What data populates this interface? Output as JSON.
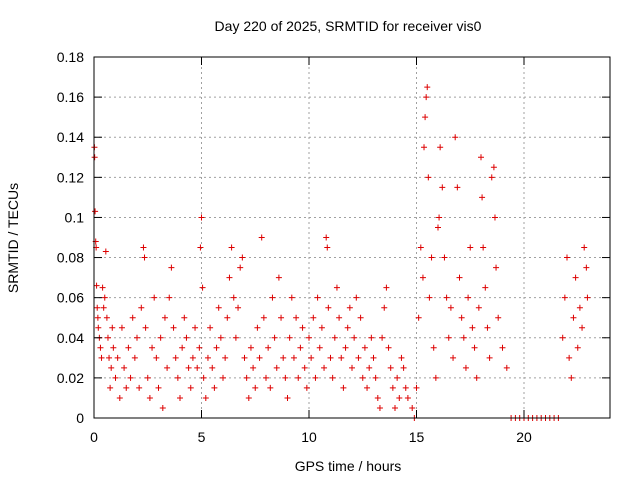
{
  "chart_data": {
    "type": "scatter",
    "title": "Day 220 of 2025, SRMTID for receiver vis0",
    "xlabel": "GPS time / hours",
    "ylabel": "SRMTID / TECUs",
    "xlim": [
      0,
      24
    ],
    "ylim": [
      0,
      0.18
    ],
    "xticks": [
      0,
      5,
      10,
      15,
      20
    ],
    "xtick_labels": [
      "0",
      "5",
      "10",
      "15",
      "20"
    ],
    "yticks": [
      0,
      0.02,
      0.04,
      0.06,
      0.08,
      0.1,
      0.12,
      0.14,
      0.16,
      0.18
    ],
    "ytick_labels": [
      "0",
      "0.02",
      "0.04",
      "0.06",
      "0.08",
      "0.1",
      "0.12",
      "0.14",
      "0.16",
      "0.18"
    ],
    "grid": true,
    "marker": "plus",
    "color": "#dd0000",
    "series": [
      {
        "values": [
          [
            0.02,
            0.135
          ],
          [
            0.03,
            0.13
          ],
          [
            0.05,
            0.103
          ],
          [
            0.08,
            0.088
          ],
          [
            0.1,
            0.085
          ],
          [
            0.12,
            0.066
          ],
          [
            0.15,
            0.055
          ],
          [
            0.18,
            0.05
          ],
          [
            0.2,
            0.045
          ],
          [
            0.25,
            0.04
          ],
          [
            0.3,
            0.035
          ],
          [
            0.35,
            0.03
          ],
          [
            0.4,
            0.065
          ],
          [
            0.45,
            0.055
          ],
          [
            0.5,
            0.06
          ],
          [
            0.55,
            0.083
          ],
          [
            0.6,
            0.05
          ],
          [
            0.65,
            0.04
          ],
          [
            0.7,
            0.03
          ],
          [
            0.75,
            0.015
          ],
          [
            0.8,
            0.025
          ],
          [
            0.85,
            0.045
          ],
          [
            0.9,
            0.035
          ],
          [
            1.0,
            0.02
          ],
          [
            1.1,
            0.03
          ],
          [
            1.2,
            0.01
          ],
          [
            1.3,
            0.045
          ],
          [
            1.4,
            0.025
          ],
          [
            1.5,
            0.015
          ],
          [
            1.6,
            0.035
          ],
          [
            1.7,
            0.02
          ],
          [
            1.8,
            0.05
          ],
          [
            1.9,
            0.03
          ],
          [
            2.0,
            0.04
          ],
          [
            2.1,
            0.015
          ],
          [
            2.2,
            0.055
          ],
          [
            2.3,
            0.085
          ],
          [
            2.35,
            0.08
          ],
          [
            2.4,
            0.045
          ],
          [
            2.5,
            0.02
          ],
          [
            2.6,
            0.01
          ],
          [
            2.7,
            0.035
          ],
          [
            2.8,
            0.06
          ],
          [
            2.9,
            0.03
          ],
          [
            3.0,
            0.015
          ],
          [
            3.1,
            0.04
          ],
          [
            3.2,
            0.005
          ],
          [
            3.3,
            0.05
          ],
          [
            3.4,
            0.025
          ],
          [
            3.5,
            0.06
          ],
          [
            3.6,
            0.075
          ],
          [
            3.7,
            0.045
          ],
          [
            3.8,
            0.03
          ],
          [
            3.9,
            0.02
          ],
          [
            4.0,
            0.01
          ],
          [
            4.1,
            0.035
          ],
          [
            4.2,
            0.05
          ],
          [
            4.3,
            0.04
          ],
          [
            4.4,
            0.025
          ],
          [
            4.5,
            0.015
          ],
          [
            4.6,
            0.03
          ],
          [
            4.7,
            0.045
          ],
          [
            4.8,
            0.025
          ],
          [
            4.9,
            0.035
          ],
          [
            4.95,
            0.085
          ],
          [
            5.0,
            0.1
          ],
          [
            5.05,
            0.065
          ],
          [
            5.1,
            0.02
          ],
          [
            5.2,
            0.01
          ],
          [
            5.3,
            0.03
          ],
          [
            5.4,
            0.045
          ],
          [
            5.5,
            0.025
          ],
          [
            5.6,
            0.015
          ],
          [
            5.7,
            0.035
          ],
          [
            5.8,
            0.055
          ],
          [
            5.9,
            0.04
          ],
          [
            6.0,
            0.02
          ],
          [
            6.1,
            0.03
          ],
          [
            6.2,
            0.05
          ],
          [
            6.3,
            0.07
          ],
          [
            6.4,
            0.085
          ],
          [
            6.5,
            0.06
          ],
          [
            6.6,
            0.04
          ],
          [
            6.7,
            0.055
          ],
          [
            6.8,
            0.075
          ],
          [
            6.9,
            0.08
          ],
          [
            7.0,
            0.03
          ],
          [
            7.1,
            0.02
          ],
          [
            7.2,
            0.01
          ],
          [
            7.3,
            0.035
          ],
          [
            7.4,
            0.025
          ],
          [
            7.5,
            0.015
          ],
          [
            7.6,
            0.045
          ],
          [
            7.7,
            0.03
          ],
          [
            7.8,
            0.09
          ],
          [
            7.9,
            0.05
          ],
          [
            8.0,
            0.02
          ],
          [
            8.1,
            0.035
          ],
          [
            8.2,
            0.015
          ],
          [
            8.3,
            0.06
          ],
          [
            8.4,
            0.04
          ],
          [
            8.5,
            0.025
          ],
          [
            8.6,
            0.07
          ],
          [
            8.7,
            0.05
          ],
          [
            8.8,
            0.03
          ],
          [
            8.9,
            0.02
          ],
          [
            9.0,
            0.01
          ],
          [
            9.1,
            0.04
          ],
          [
            9.2,
            0.06
          ],
          [
            9.3,
            0.03
          ],
          [
            9.4,
            0.05
          ],
          [
            9.5,
            0.02
          ],
          [
            9.6,
            0.035
          ],
          [
            9.7,
            0.045
          ],
          [
            9.8,
            0.025
          ],
          [
            9.9,
            0.015
          ],
          [
            10.0,
            0.04
          ],
          [
            10.1,
            0.03
          ],
          [
            10.2,
            0.05
          ],
          [
            10.3,
            0.02
          ],
          [
            10.4,
            0.06
          ],
          [
            10.5,
            0.035
          ],
          [
            10.6,
            0.045
          ],
          [
            10.7,
            0.025
          ],
          [
            10.8,
            0.09
          ],
          [
            10.85,
            0.085
          ],
          [
            10.9,
            0.055
          ],
          [
            11.0,
            0.03
          ],
          [
            11.1,
            0.02
          ],
          [
            11.2,
            0.04
          ],
          [
            11.3,
            0.065
          ],
          [
            11.4,
            0.05
          ],
          [
            11.5,
            0.03
          ],
          [
            11.6,
            0.015
          ],
          [
            11.7,
            0.035
          ],
          [
            11.8,
            0.045
          ],
          [
            11.9,
            0.055
          ],
          [
            12.0,
            0.025
          ],
          [
            12.1,
            0.04
          ],
          [
            12.2,
            0.06
          ],
          [
            12.3,
            0.03
          ],
          [
            12.4,
            0.05
          ],
          [
            12.5,
            0.02
          ],
          [
            12.6,
            0.035
          ],
          [
            12.7,
            0.015
          ],
          [
            12.8,
            0.025
          ],
          [
            12.9,
            0.04
          ],
          [
            13.0,
            0.03
          ],
          [
            13.1,
            0.02
          ],
          [
            13.2,
            0.01
          ],
          [
            13.3,
            0.005
          ],
          [
            13.4,
            0.04
          ],
          [
            13.5,
            0.055
          ],
          [
            13.6,
            0.065
          ],
          [
            13.7,
            0.035
          ],
          [
            13.8,
            0.025
          ],
          [
            13.9,
            0.015
          ],
          [
            14.0,
            0.005
          ],
          [
            14.1,
            0.02
          ],
          [
            14.2,
            0.01
          ],
          [
            14.3,
            0.03
          ],
          [
            14.4,
            0.025
          ],
          [
            14.5,
            0.015
          ],
          [
            14.6,
            0.01
          ],
          [
            14.8,
            0.005
          ],
          [
            14.9,
            0.0
          ],
          [
            15.0,
            0.015
          ],
          [
            15.1,
            0.05
          ],
          [
            15.2,
            0.085
          ],
          [
            15.3,
            0.07
          ],
          [
            15.35,
            0.135
          ],
          [
            15.4,
            0.15
          ],
          [
            15.45,
            0.16
          ],
          [
            15.5,
            0.165
          ],
          [
            15.55,
            0.12
          ],
          [
            15.6,
            0.06
          ],
          [
            15.7,
            0.08
          ],
          [
            15.8,
            0.035
          ],
          [
            15.9,
            0.02
          ],
          [
            16.0,
            0.095
          ],
          [
            16.05,
            0.1
          ],
          [
            16.1,
            0.135
          ],
          [
            16.2,
            0.115
          ],
          [
            16.3,
            0.08
          ],
          [
            16.4,
            0.06
          ],
          [
            16.5,
            0.04
          ],
          [
            16.6,
            0.055
          ],
          [
            16.7,
            0.03
          ],
          [
            16.8,
            0.14
          ],
          [
            16.9,
            0.115
          ],
          [
            17.0,
            0.07
          ],
          [
            17.1,
            0.05
          ],
          [
            17.2,
            0.04
          ],
          [
            17.3,
            0.025
          ],
          [
            17.4,
            0.06
          ],
          [
            17.5,
            0.085
          ],
          [
            17.6,
            0.045
          ],
          [
            17.7,
            0.035
          ],
          [
            17.8,
            0.02
          ],
          [
            17.9,
            0.055
          ],
          [
            18.0,
            0.13
          ],
          [
            18.05,
            0.11
          ],
          [
            18.1,
            0.085
          ],
          [
            18.2,
            0.065
          ],
          [
            18.3,
            0.045
          ],
          [
            18.4,
            0.03
          ],
          [
            18.5,
            0.12
          ],
          [
            18.6,
            0.125
          ],
          [
            18.65,
            0.1
          ],
          [
            18.7,
            0.075
          ],
          [
            18.8,
            0.05
          ],
          [
            19.0,
            0.035
          ],
          [
            19.2,
            0.025
          ],
          [
            19.4,
            0.0
          ],
          [
            19.6,
            0.0
          ],
          [
            19.8,
            0.0
          ],
          [
            20.0,
            0.0
          ],
          [
            20.2,
            0.0
          ],
          [
            20.4,
            0.0
          ],
          [
            20.6,
            0.0
          ],
          [
            20.8,
            0.0
          ],
          [
            21.0,
            0.0
          ],
          [
            21.2,
            0.0
          ],
          [
            21.4,
            0.0
          ],
          [
            21.6,
            0.0
          ],
          [
            21.8,
            0.04
          ],
          [
            21.9,
            0.06
          ],
          [
            22.0,
            0.08
          ],
          [
            22.1,
            0.03
          ],
          [
            22.2,
            0.02
          ],
          [
            22.3,
            0.05
          ],
          [
            22.4,
            0.07
          ],
          [
            22.5,
            0.035
          ],
          [
            22.6,
            0.055
          ],
          [
            22.7,
            0.045
          ],
          [
            22.8,
            0.085
          ],
          [
            22.9,
            0.075
          ],
          [
            22.95,
            0.06
          ]
        ]
      }
    ]
  }
}
